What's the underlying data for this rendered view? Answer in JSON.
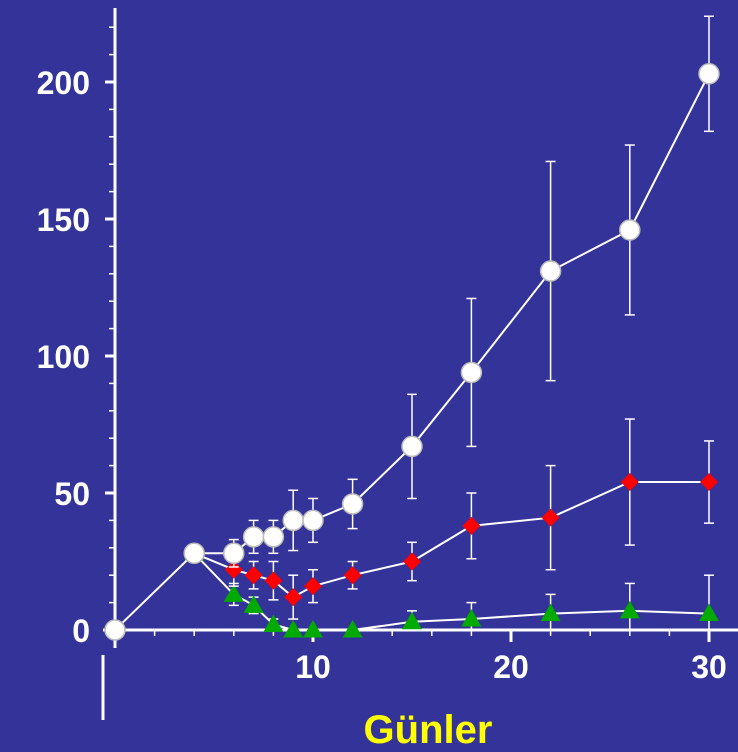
{
  "chart_data": {
    "type": "line",
    "title": "",
    "xlabel": "Günler",
    "ylabel": "",
    "xlim": [
      0,
      31
    ],
    "ylim": [
      0,
      220
    ],
    "x_ticks": [
      10,
      20,
      30
    ],
    "y_ticks": [
      0,
      50,
      100,
      150,
      200
    ],
    "grid": false,
    "legend": "none",
    "colors": {
      "background": "#333399",
      "axis": "#ffffff",
      "xlabel": "#ffff00",
      "series": [
        "#ffffff",
        "#ff0000",
        "#00aa00"
      ]
    },
    "series": [
      {
        "marker": "circle",
        "color": "#ffffff",
        "points": [
          {
            "x": 0,
            "y": 0,
            "err": 0
          },
          {
            "x": 4,
            "y": 28,
            "err": 0
          },
          {
            "x": 6,
            "y": 28,
            "err": 5
          },
          {
            "x": 7,
            "y": 34,
            "err": 6
          },
          {
            "x": 8,
            "y": 34,
            "err": 6
          },
          {
            "x": 9,
            "y": 40,
            "err": 11
          },
          {
            "x": 10,
            "y": 40,
            "err": 8
          },
          {
            "x": 12,
            "y": 46,
            "err": 9
          },
          {
            "x": 15,
            "y": 67,
            "err": 19
          },
          {
            "x": 18,
            "y": 94,
            "err": 27
          },
          {
            "x": 22,
            "y": 131,
            "err": 40
          },
          {
            "x": 26,
            "y": 146,
            "err": 31
          },
          {
            "x": 30,
            "y": 203,
            "err": 21
          }
        ]
      },
      {
        "marker": "diamond",
        "color": "#ff0000",
        "points": [
          {
            "x": 4,
            "y": 28,
            "err": 0
          },
          {
            "x": 6,
            "y": 22,
            "err": 6
          },
          {
            "x": 7,
            "y": 20,
            "err": 5
          },
          {
            "x": 8,
            "y": 18,
            "err": 7
          },
          {
            "x": 9,
            "y": 12,
            "err": 8
          },
          {
            "x": 10,
            "y": 16,
            "err": 6
          },
          {
            "x": 12,
            "y": 20,
            "err": 5
          },
          {
            "x": 15,
            "y": 25,
            "err": 7
          },
          {
            "x": 18,
            "y": 38,
            "err": 12
          },
          {
            "x": 22,
            "y": 41,
            "err": 19
          },
          {
            "x": 26,
            "y": 54,
            "err": 23
          },
          {
            "x": 30,
            "y": 54,
            "err": 15
          }
        ]
      },
      {
        "marker": "triangle",
        "color": "#00aa00",
        "points": [
          {
            "x": 4,
            "y": 28,
            "err": 0
          },
          {
            "x": 6,
            "y": 13,
            "err": 4
          },
          {
            "x": 7,
            "y": 9,
            "err": 3
          },
          {
            "x": 8,
            "y": 2,
            "err": 2
          },
          {
            "x": 9,
            "y": 0,
            "err": 0
          },
          {
            "x": 10,
            "y": 0,
            "err": 0
          },
          {
            "x": 12,
            "y": 0,
            "err": 0
          },
          {
            "x": 15,
            "y": 3,
            "err": 4
          },
          {
            "x": 18,
            "y": 4,
            "err": 6
          },
          {
            "x": 22,
            "y": 6,
            "err": 7
          },
          {
            "x": 26,
            "y": 7,
            "err": 10
          },
          {
            "x": 30,
            "y": 6,
            "err": 14
          }
        ]
      }
    ]
  }
}
